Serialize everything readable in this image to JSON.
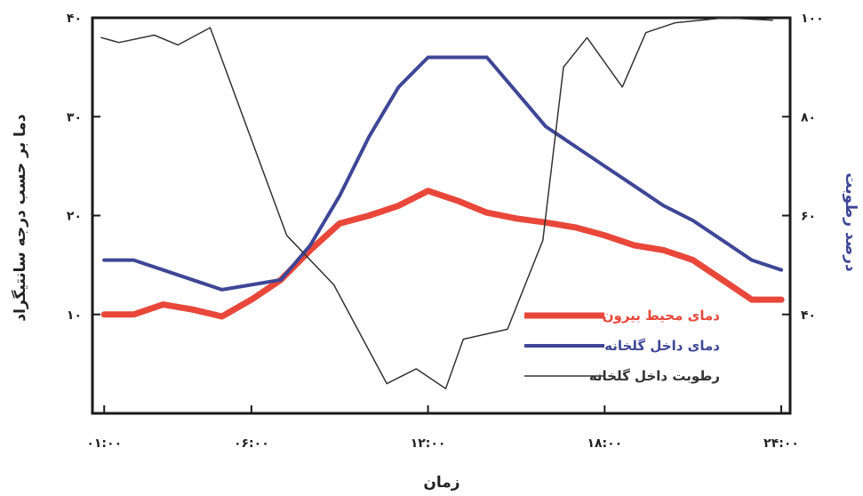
{
  "chart_data": {
    "type": "line",
    "xlabel": "زمان",
    "ylabel_left": "دما بر حسب درجه سانتیگراد",
    "ylabel_right": "درصد رطوبت",
    "x_ticks": [
      {
        "value": 1,
        "label": "۰۱:۰۰"
      },
      {
        "value": 6,
        "label": "۰۶:۰۰"
      },
      {
        "value": 12,
        "label": "۱۲:۰۰"
      },
      {
        "value": 18,
        "label": "۱۸:۰۰"
      },
      {
        "value": 24,
        "label": "۲۴:۰۰"
      }
    ],
    "xlim": [
      0.6,
      24.3
    ],
    "y_left_ticks": [
      {
        "value": 10,
        "label": "۱۰"
      },
      {
        "value": 20,
        "label": "۲۰"
      },
      {
        "value": 30,
        "label": "۳۰"
      },
      {
        "value": 40,
        "label": "۴۰"
      }
    ],
    "ylim_left": [
      0,
      40
    ],
    "y_right_ticks": [
      {
        "value": 40,
        "label": "۴۰"
      },
      {
        "value": 60,
        "label": "۶۰"
      },
      {
        "value": 80,
        "label": "۸۰"
      },
      {
        "value": 100,
        "label": "۱۰۰"
      }
    ],
    "ylim_right": [
      20,
      100
    ],
    "legend_position": "bottom-right",
    "series": [
      {
        "name": "دمای محیط بیرون",
        "color": "#e8473a",
        "axis": "left",
        "x": [
          1,
          2,
          3,
          4,
          5,
          6,
          7,
          8,
          9,
          10,
          11,
          12,
          13,
          14,
          15,
          16,
          17,
          18,
          19,
          20,
          21,
          22,
          23,
          24
        ],
        "y": [
          10,
          10,
          11,
          10.5,
          9.8,
          11.5,
          13.5,
          16.5,
          19.2,
          20,
          21,
          22.5,
          21.5,
          20.3,
          19.7,
          19.3,
          18.8,
          18,
          17,
          16.5,
          15.5,
          13.5,
          11.5,
          11.5
        ]
      },
      {
        "name": "دمای داخل گلخانه",
        "color": "#3f4697",
        "axis": "left",
        "x": [
          1,
          2,
          3,
          4,
          5,
          6,
          7,
          8,
          9,
          10,
          11,
          12,
          13,
          14,
          15,
          16,
          17,
          18,
          19,
          20,
          21,
          22,
          23,
          24
        ],
        "y": [
          15.5,
          15.5,
          14.5,
          13.5,
          12.5,
          13,
          13.5,
          17,
          22,
          28,
          33,
          36,
          36,
          36,
          32.5,
          29,
          27,
          25,
          23,
          21,
          19.5,
          17.5,
          15.5,
          14.5
        ]
      },
      {
        "name": "رطوبت داخل گلخانه",
        "color": "#333333",
        "axis": "right",
        "x": [
          0.9,
          1.5,
          2.7,
          3.5,
          4.6,
          7.2,
          8.8,
          10.6,
          11.6,
          12.6,
          13.2,
          14.7,
          15.9,
          16.6,
          17.4,
          18.6,
          19.4,
          20.4,
          22.1,
          23.7
        ],
        "y": [
          96,
          95,
          96.5,
          94.5,
          98,
          56,
          46,
          26,
          29,
          25,
          35,
          37,
          55,
          90,
          96,
          86,
          97,
          99,
          100,
          99.5
        ]
      }
    ]
  }
}
